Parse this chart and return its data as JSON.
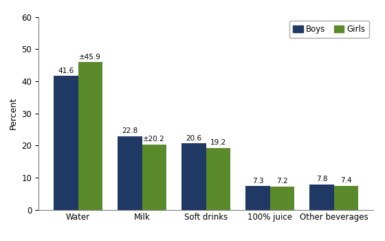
{
  "categories": [
    "Water",
    "Milk",
    "Soft drinks",
    "100% juice",
    "Other beverages"
  ],
  "boys_values": [
    41.6,
    22.8,
    20.6,
    7.3,
    7.8
  ],
  "girls_values": [
    45.9,
    20.2,
    19.2,
    7.2,
    7.4
  ],
  "boys_labels": [
    "41.6",
    "22.8",
    "20.6",
    "7.3",
    "7.8"
  ],
  "girls_labels": [
    "±45.9",
    "±20.2",
    "19.2",
    "7.2",
    "7.4"
  ],
  "boys_color": "#1f3864",
  "girls_color": "#5a8a2a",
  "ylabel": "Percent",
  "ylim": [
    0,
    60
  ],
  "yticks": [
    0,
    10,
    20,
    30,
    40,
    50,
    60
  ],
  "legend_labels": [
    "Boys",
    "Girls"
  ],
  "bar_width": 0.38,
  "label_fontsize": 7.5,
  "axis_fontsize": 9,
  "legend_fontsize": 8.5,
  "tick_fontsize": 8.5
}
